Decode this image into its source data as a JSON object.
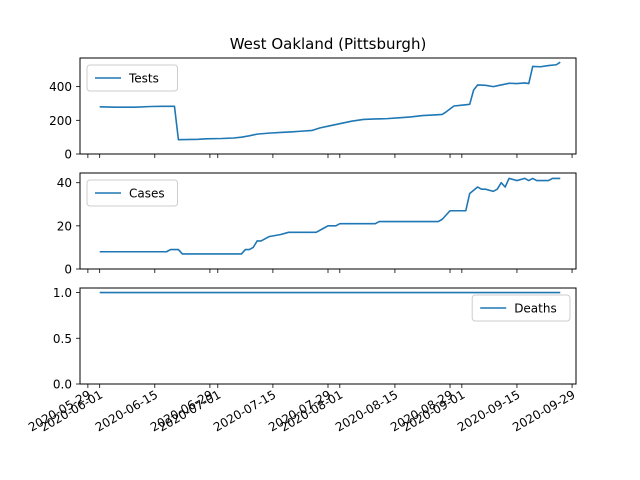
{
  "chart_data": {
    "type": "line",
    "title": "West Oakland (Pittsburgh)",
    "x_tick_labels": [
      {
        "date": "2020-05-29",
        "label": "2020-05-29"
      },
      {
        "date": "2020-06-01",
        "label": "2020-06-01"
      },
      {
        "date": "2020-06-15",
        "label": "2020-06-15"
      },
      {
        "date": "2020-06-29",
        "label": "2020-06-29"
      },
      {
        "date": "2020-07-01",
        "label": "2020-07-01"
      },
      {
        "date": "2020-07-15",
        "label": "2020-07-15"
      },
      {
        "date": "2020-07-29",
        "label": "2020-07-29"
      },
      {
        "date": "2020-08-01",
        "label": "2020-08-01"
      },
      {
        "date": "2020-08-15",
        "label": "2020-08-15"
      },
      {
        "date": "2020-08-29",
        "label": "2020-08-29"
      },
      {
        "date": "2020-09-01",
        "label": "2020-09-01"
      },
      {
        "date": "2020-09-15",
        "label": "2020-09-15"
      },
      {
        "date": "2020-09-29",
        "label": "2020-09-29"
      }
    ],
    "xlim": [
      "2020-05-27",
      "2020-09-30"
    ],
    "panels": [
      {
        "series_name": "Tests",
        "ylim": [
          0,
          570
        ],
        "yticks": [
          0,
          200,
          400
        ],
        "legend": "upper left",
        "points": [
          [
            "2020-06-01",
            280
          ],
          [
            "2020-06-05",
            278
          ],
          [
            "2020-06-10",
            278
          ],
          [
            "2020-06-14",
            282
          ],
          [
            "2020-06-17",
            283
          ],
          [
            "2020-06-20",
            283
          ],
          [
            "2020-06-21",
            85
          ],
          [
            "2020-06-26",
            87
          ],
          [
            "2020-06-28",
            90
          ],
          [
            "2020-07-02",
            92
          ],
          [
            "2020-07-05",
            95
          ],
          [
            "2020-07-07",
            100
          ],
          [
            "2020-07-09",
            108
          ],
          [
            "2020-07-11",
            118
          ],
          [
            "2020-07-14",
            124
          ],
          [
            "2020-07-17",
            128
          ],
          [
            "2020-07-20",
            132
          ],
          [
            "2020-07-22",
            135
          ],
          [
            "2020-07-25",
            140
          ],
          [
            "2020-07-27",
            155
          ],
          [
            "2020-07-29",
            165
          ],
          [
            "2020-08-01",
            180
          ],
          [
            "2020-08-04",
            195
          ],
          [
            "2020-08-07",
            205
          ],
          [
            "2020-08-10",
            208
          ],
          [
            "2020-08-13",
            210
          ],
          [
            "2020-08-16",
            215
          ],
          [
            "2020-08-19",
            220
          ],
          [
            "2020-08-22",
            228
          ],
          [
            "2020-08-25",
            232
          ],
          [
            "2020-08-27",
            235
          ],
          [
            "2020-08-28",
            250
          ],
          [
            "2020-08-30",
            285
          ],
          [
            "2020-09-01",
            290
          ],
          [
            "2020-09-03",
            295
          ],
          [
            "2020-09-04",
            380
          ],
          [
            "2020-09-05",
            410
          ],
          [
            "2020-09-07",
            408
          ],
          [
            "2020-09-09",
            400
          ],
          [
            "2020-09-11",
            410
          ],
          [
            "2020-09-13",
            420
          ],
          [
            "2020-09-15",
            418
          ],
          [
            "2020-09-17",
            422
          ],
          [
            "2020-09-18",
            418
          ],
          [
            "2020-09-19",
            520
          ],
          [
            "2020-09-21",
            518
          ],
          [
            "2020-09-23",
            525
          ],
          [
            "2020-09-25",
            530
          ],
          [
            "2020-09-26",
            545
          ]
        ]
      },
      {
        "series_name": "Cases",
        "ylim": [
          0,
          44.5
        ],
        "yticks": [
          0,
          20,
          40
        ],
        "legend": "upper left",
        "points": [
          [
            "2020-06-01",
            8
          ],
          [
            "2020-06-18",
            8
          ],
          [
            "2020-06-19",
            9
          ],
          [
            "2020-06-21",
            9
          ],
          [
            "2020-06-22",
            7
          ],
          [
            "2020-07-07",
            7
          ],
          [
            "2020-07-08",
            9
          ],
          [
            "2020-07-09",
            9
          ],
          [
            "2020-07-10",
            10
          ],
          [
            "2020-07-11",
            13
          ],
          [
            "2020-07-12",
            13
          ],
          [
            "2020-07-14",
            15
          ],
          [
            "2020-07-17",
            16
          ],
          [
            "2020-07-19",
            17
          ],
          [
            "2020-07-26",
            17
          ],
          [
            "2020-07-28",
            19
          ],
          [
            "2020-07-29",
            20
          ],
          [
            "2020-07-31",
            20
          ],
          [
            "2020-08-01",
            21
          ],
          [
            "2020-08-10",
            21
          ],
          [
            "2020-08-11",
            22
          ],
          [
            "2020-08-26",
            22
          ],
          [
            "2020-08-27",
            23
          ],
          [
            "2020-08-29",
            27
          ],
          [
            "2020-09-02",
            27
          ],
          [
            "2020-09-03",
            35
          ],
          [
            "2020-09-05",
            38
          ],
          [
            "2020-09-06",
            37
          ],
          [
            "2020-09-07",
            37
          ],
          [
            "2020-09-09",
            36
          ],
          [
            "2020-09-10",
            37
          ],
          [
            "2020-09-11",
            40
          ],
          [
            "2020-09-12",
            38
          ],
          [
            "2020-09-13",
            42
          ],
          [
            "2020-09-15",
            41
          ],
          [
            "2020-09-17",
            42
          ],
          [
            "2020-09-18",
            41
          ],
          [
            "2020-09-19",
            42
          ],
          [
            "2020-09-20",
            41
          ],
          [
            "2020-09-23",
            41
          ],
          [
            "2020-09-24",
            42
          ],
          [
            "2020-09-26",
            42
          ]
        ]
      },
      {
        "series_name": "Deaths",
        "ylim": [
          0,
          1.05
        ],
        "yticks": [
          0.0,
          0.5,
          1.0
        ],
        "ytick_labels": [
          "0.0",
          "0.5",
          "1.0"
        ],
        "legend": "upper right",
        "points": [
          [
            "2020-06-01",
            1
          ],
          [
            "2020-09-26",
            1
          ]
        ]
      }
    ]
  }
}
